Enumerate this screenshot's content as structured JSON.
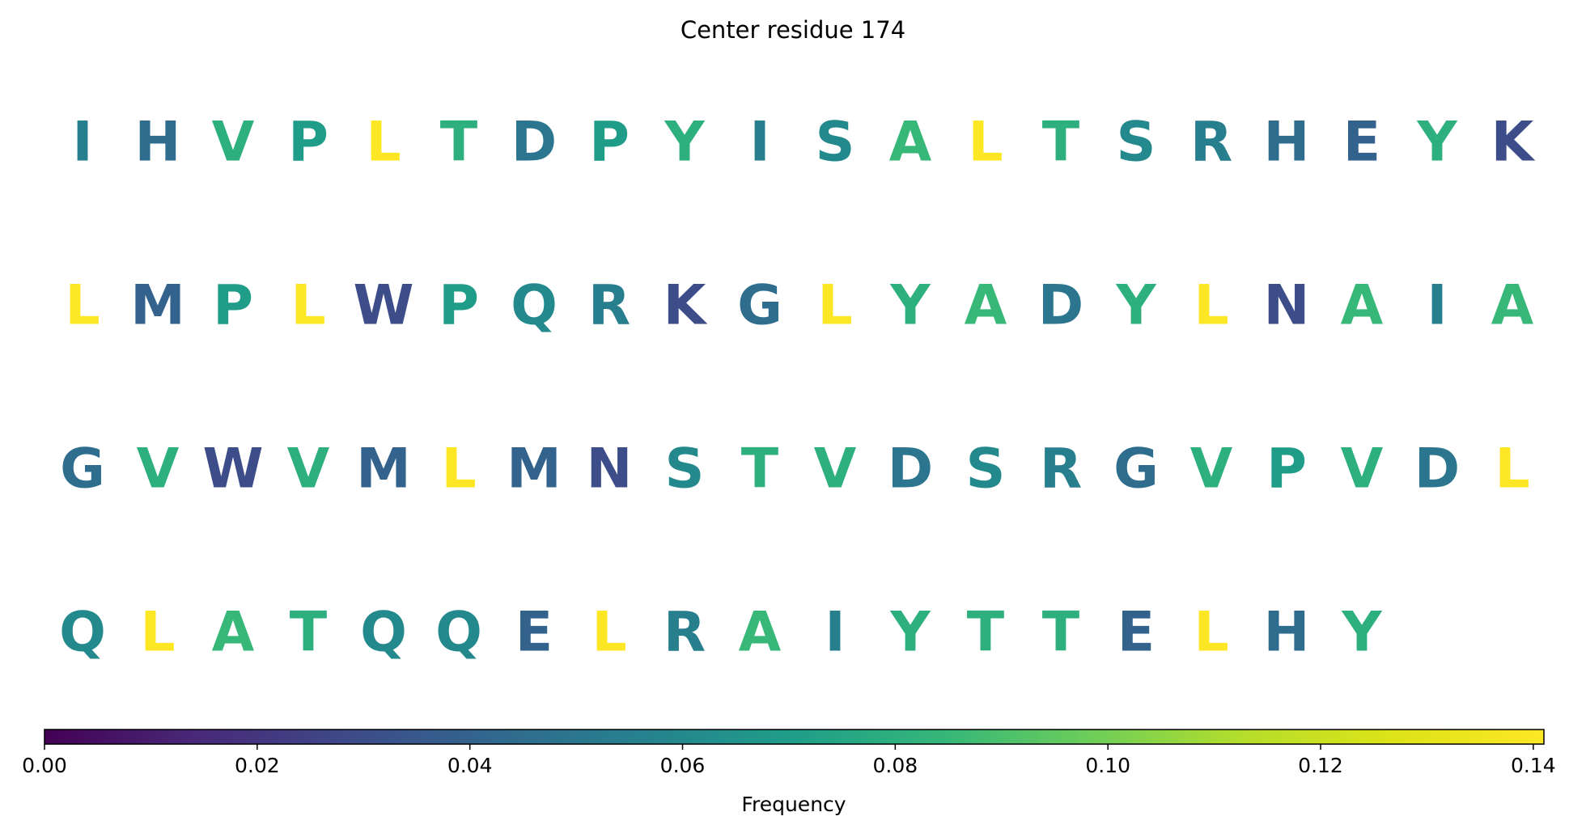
{
  "chart_data": {
    "type": "heatmap",
    "title": "Center residue 174",
    "residues": [
      "I",
      "H",
      "V",
      "P",
      "L",
      "T",
      "D",
      "P",
      "Y",
      "I",
      "S",
      "A",
      "L",
      "T",
      "S",
      "R",
      "H",
      "E",
      "Y",
      "K",
      "L",
      "M",
      "P",
      "L",
      "W",
      "P",
      "Q",
      "R",
      "K",
      "G",
      "L",
      "Y",
      "A",
      "D",
      "Y",
      "L",
      "N",
      "A",
      "I",
      "A",
      "G",
      "V",
      "W",
      "V",
      "M",
      "L",
      "M",
      "N",
      "S",
      "T",
      "V",
      "D",
      "S",
      "R",
      "G",
      "V",
      "P",
      "V",
      "D",
      "L",
      "Q",
      "L",
      "A",
      "T",
      "Q",
      "Q",
      "E",
      "L",
      "R",
      "A",
      "I",
      "Y",
      "T",
      "T",
      "E",
      "L",
      "H",
      "Y"
    ],
    "frequencies": [
      0.055,
      0.045,
      0.08,
      0.07,
      0.141,
      0.08,
      0.05,
      0.07,
      0.08,
      0.055,
      0.06,
      0.085,
      0.141,
      0.08,
      0.06,
      0.055,
      0.045,
      0.04,
      0.08,
      0.03,
      0.141,
      0.04,
      0.07,
      0.141,
      0.03,
      0.07,
      0.06,
      0.055,
      0.03,
      0.045,
      0.141,
      0.08,
      0.085,
      0.05,
      0.08,
      0.141,
      0.03,
      0.085,
      0.055,
      0.085,
      0.045,
      0.08,
      0.03,
      0.08,
      0.04,
      0.141,
      0.04,
      0.03,
      0.06,
      0.08,
      0.08,
      0.05,
      0.06,
      0.055,
      0.045,
      0.08,
      0.07,
      0.08,
      0.05,
      0.141,
      0.06,
      0.141,
      0.085,
      0.08,
      0.06,
      0.06,
      0.04,
      0.141,
      0.055,
      0.085,
      0.055,
      0.08,
      0.08,
      0.08,
      0.04,
      0.141,
      0.045,
      0.08
    ],
    "columns_per_row": 20,
    "colormap": "viridis",
    "colorbar": {
      "label": "Frequency",
      "range": [
        0,
        0.141
      ],
      "ticks": [
        0.0,
        0.02,
        0.04,
        0.06,
        0.08,
        0.1,
        0.12,
        0.14
      ],
      "tick_labels": [
        "0.00",
        "0.02",
        "0.04",
        "0.06",
        "0.08",
        "0.10",
        "0.12",
        "0.14"
      ],
      "orientation": "horizontal"
    }
  }
}
